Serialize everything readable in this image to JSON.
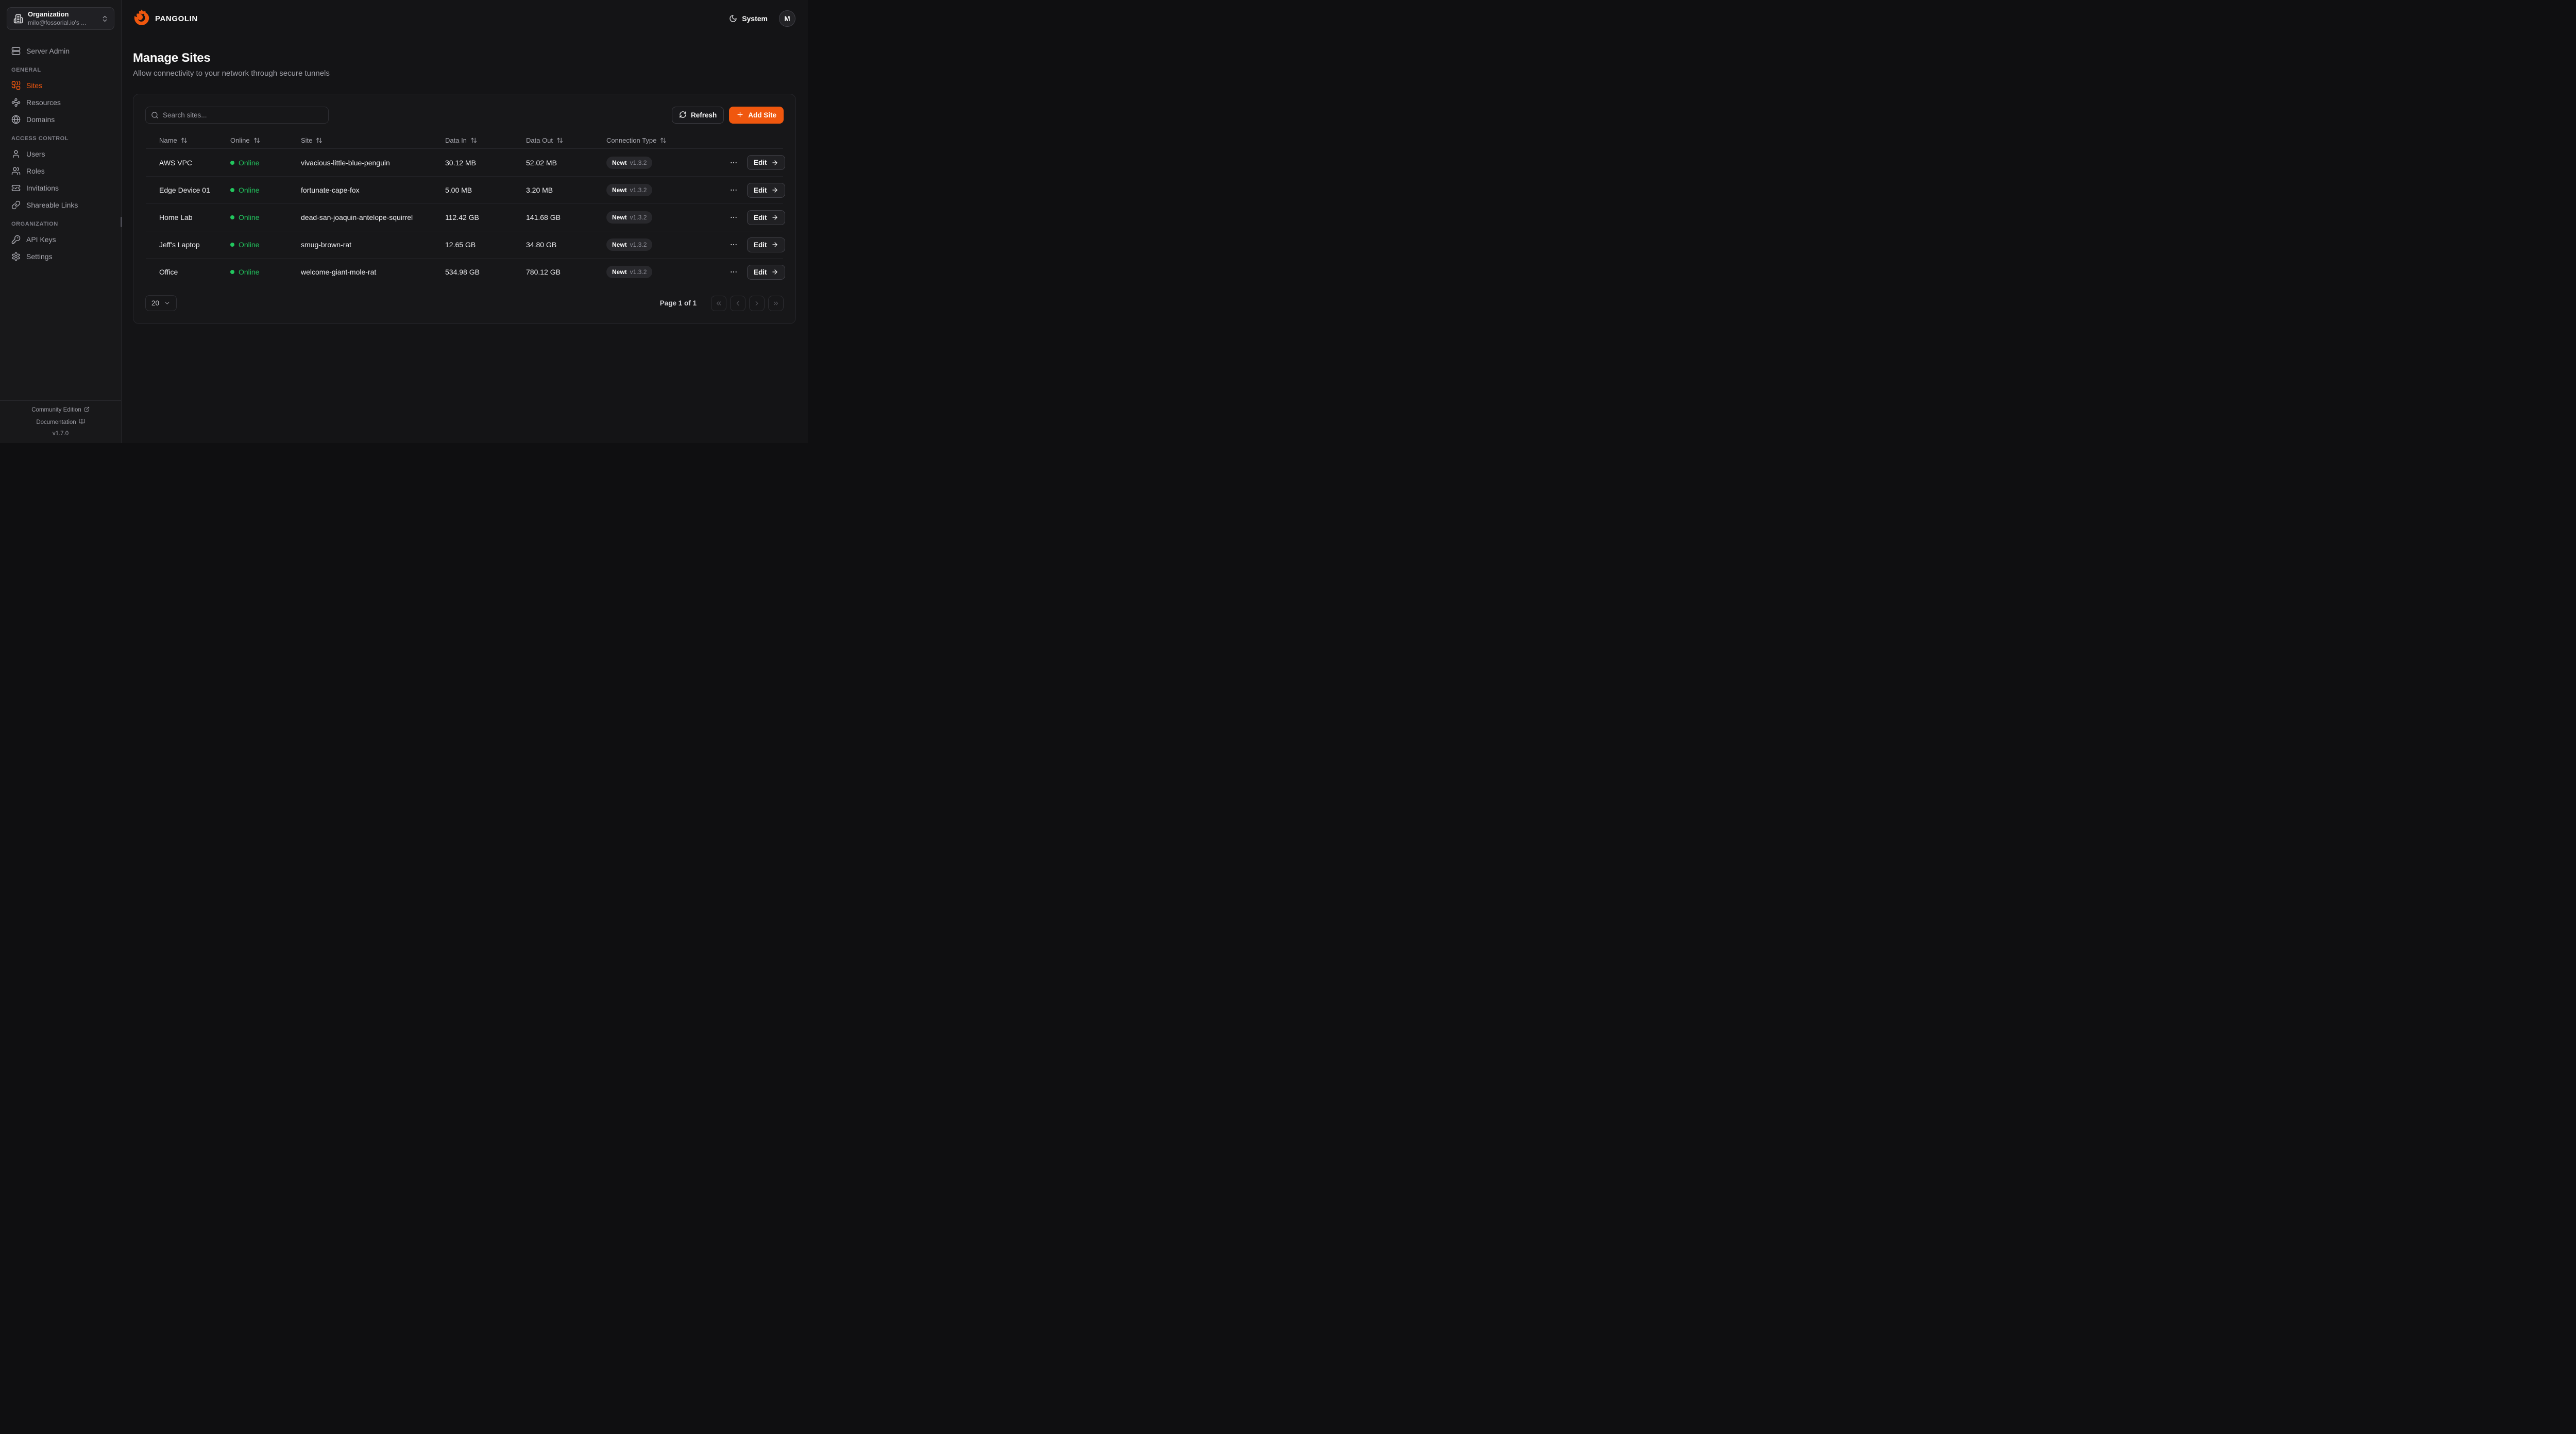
{
  "brand": {
    "name": "PANGOLIN",
    "orange": "#f0570e"
  },
  "sidebar": {
    "org_selector": {
      "label": "Organization",
      "value": "milo@fossorial.io's ...",
      "icon": "building-icon"
    },
    "server_admin": {
      "label": "Server Admin",
      "icon": "server"
    },
    "sections": [
      {
        "heading": "GENERAL",
        "items": [
          {
            "label": "Sites",
            "icon": "combine",
            "active": true
          },
          {
            "label": "Resources",
            "icon": "waypoints",
            "active": false
          },
          {
            "label": "Domains",
            "icon": "globe",
            "active": false
          }
        ]
      },
      {
        "heading": "ACCESS CONTROL",
        "items": [
          {
            "label": "Users",
            "icon": "user",
            "active": false
          },
          {
            "label": "Roles",
            "icon": "users",
            "active": false
          },
          {
            "label": "Invitations",
            "icon": "ticket-check",
            "active": false
          },
          {
            "label": "Shareable Links",
            "icon": "link",
            "active": false
          }
        ]
      },
      {
        "heading": "ORGANIZATION",
        "items": [
          {
            "label": "API Keys",
            "icon": "key",
            "active": false
          },
          {
            "label": "Settings",
            "icon": "settings",
            "active": false
          }
        ]
      }
    ],
    "footer": {
      "community": "Community Edition",
      "documentation": "Documentation",
      "version": "v1.7.0"
    }
  },
  "header": {
    "theme_label": "System",
    "avatar_initial": "M"
  },
  "page": {
    "title": "Manage Sites",
    "subtitle": "Allow connectivity to your network through secure tunnels"
  },
  "toolbar": {
    "search_placeholder": "Search sites...",
    "refresh_label": "Refresh",
    "add_site_label": "Add Site"
  },
  "table": {
    "columns": [
      "Name",
      "Online",
      "Site",
      "Data In",
      "Data Out",
      "Connection Type"
    ],
    "status_colors": {
      "online": "#22c55e"
    },
    "rows": [
      {
        "name": "AWS VPC",
        "status": "Online",
        "site": "vivacious-little-blue-penguin",
        "data_in": "30.12 MB",
        "data_out": "52.02 MB",
        "conn_type": "Newt",
        "conn_version": "v1.3.2",
        "edit_label": "Edit"
      },
      {
        "name": "Edge Device 01",
        "status": "Online",
        "site": "fortunate-cape-fox",
        "data_in": "5.00 MB",
        "data_out": "3.20 MB",
        "conn_type": "Newt",
        "conn_version": "v1.3.2",
        "edit_label": "Edit"
      },
      {
        "name": "Home Lab",
        "status": "Online",
        "site": "dead-san-joaquin-antelope-squirrel",
        "data_in": "112.42 GB",
        "data_out": "141.68 GB",
        "conn_type": "Newt",
        "conn_version": "v1.3.2",
        "edit_label": "Edit"
      },
      {
        "name": "Jeff's Laptop",
        "status": "Online",
        "site": "smug-brown-rat",
        "data_in": "12.65 GB",
        "data_out": "34.80 GB",
        "conn_type": "Newt",
        "conn_version": "v1.3.2",
        "edit_label": "Edit"
      },
      {
        "name": "Office",
        "status": "Online",
        "site": "welcome-giant-mole-rat",
        "data_in": "534.98 GB",
        "data_out": "780.12 GB",
        "conn_type": "Newt",
        "conn_version": "v1.3.2",
        "edit_label": "Edit"
      }
    ]
  },
  "pagination": {
    "page_size": "20",
    "status": "Page 1 of 1"
  }
}
